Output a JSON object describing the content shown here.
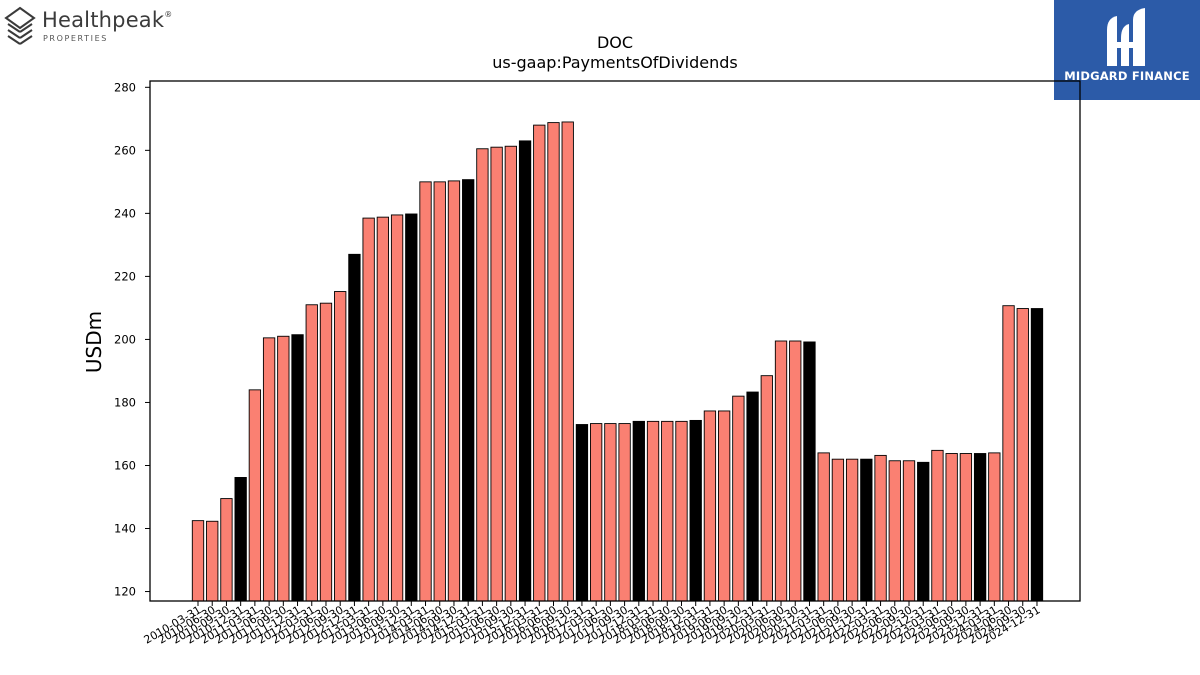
{
  "logos": {
    "left": {
      "name": "Healthpeak",
      "mark": "®",
      "sub": "PROPERTIES"
    },
    "right": {
      "name": "MIDGARD FINANCE"
    }
  },
  "colors": {
    "bar_default": "#fa8072",
    "bar_highlight": "#000000",
    "edge": "#000000",
    "right_logo_bg": "#2c5ba8"
  },
  "chart_data": {
    "type": "bar",
    "title": "DOC",
    "subtitle": "us-gaap:PaymentsOfDividends",
    "xlabel": "",
    "ylabel": "USDm",
    "ylim": [
      117,
      282
    ],
    "yticks": [
      120,
      140,
      160,
      180,
      200,
      220,
      240,
      260,
      280
    ],
    "grid": false,
    "categories": [
      "2010-03-31",
      "2010-06-30",
      "2010-09-30",
      "2010-12-31",
      "2011-03-31",
      "2011-06-30",
      "2011-09-30",
      "2011-12-31",
      "2012-03-31",
      "2012-06-30",
      "2012-09-30",
      "2012-12-31",
      "2013-03-31",
      "2013-06-30",
      "2013-09-30",
      "2013-12-31",
      "2014-03-31",
      "2014-06-30",
      "2014-09-30",
      "2014-12-31",
      "2015-03-31",
      "2015-06-30",
      "2015-09-30",
      "2015-12-31",
      "2016-03-31",
      "2016-06-30",
      "2016-09-30",
      "2016-12-31",
      "2017-03-31",
      "2017-06-30",
      "2017-09-30",
      "2017-12-31",
      "2018-03-31",
      "2018-06-30",
      "2018-09-30",
      "2018-12-31",
      "2019-03-31",
      "2019-06-30",
      "2019-09-30",
      "2019-12-31",
      "2020-03-31",
      "2020-06-30",
      "2020-09-30",
      "2020-12-31",
      "2021-03-31",
      "2021-06-30",
      "2021-09-30",
      "2021-12-31",
      "2022-03-31",
      "2022-06-30",
      "2022-09-30",
      "2022-12-31",
      "2023-03-31",
      "2023-06-30",
      "2023-09-30",
      "2023-12-31",
      "2024-03-31",
      "2024-06-30",
      "2024-09-30",
      "2024-12-31"
    ],
    "values": [
      142.5,
      142.3,
      149.5,
      156.2,
      184.0,
      200.5,
      201.0,
      201.5,
      211.0,
      211.5,
      215.2,
      227.0,
      238.5,
      238.8,
      239.5,
      239.8,
      250.0,
      250.0,
      250.3,
      250.7,
      260.5,
      261.0,
      261.3,
      263.0,
      268.0,
      268.8,
      269.0,
      173.0,
      173.3,
      173.3,
      173.3,
      174.0,
      174.0,
      174.0,
      174.0,
      174.3,
      177.3,
      177.3,
      182.0,
      183.3,
      188.5,
      199.5,
      199.5,
      199.2,
      164.0,
      162.0,
      162.0,
      162.0,
      163.2,
      161.5,
      161.5,
      161.0,
      164.8,
      163.8,
      163.8,
      163.8,
      164.0,
      210.7,
      209.8,
      209.8
    ],
    "highlight_categories": [
      "2010-12-31",
      "2011-12-31",
      "2012-12-31",
      "2013-12-31",
      "2014-12-31",
      "2015-12-31",
      "2016-12-31",
      "2017-12-31",
      "2018-12-31",
      "2019-12-31",
      "2020-12-31",
      "2021-12-31",
      "2022-12-31",
      "2023-12-31",
      "2024-12-31"
    ]
  }
}
